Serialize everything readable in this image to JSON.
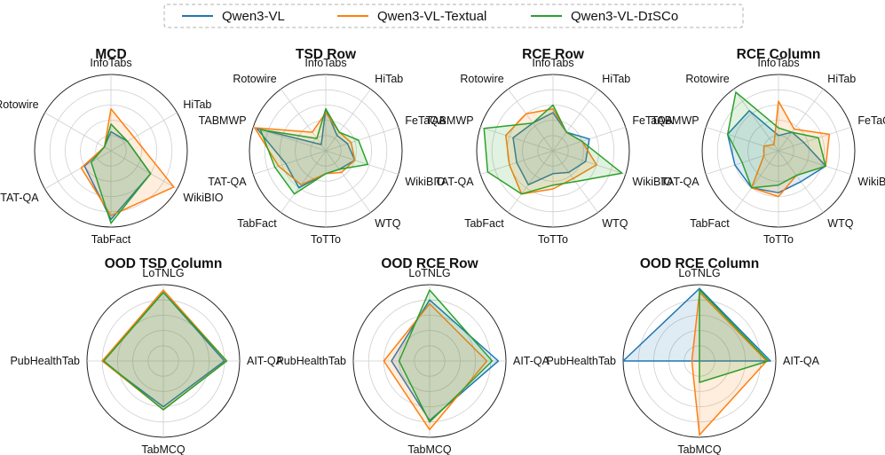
{
  "legend": [
    {
      "name": "Qwen3-VL",
      "color": "#1f77b4"
    },
    {
      "name": "Qwen3-VL-Textual",
      "color": "#ff7f0e"
    },
    {
      "name": "Qwen3-VL-DɪSCᴏ",
      "color": "#2ca02c"
    }
  ],
  "chart_data": [
    {
      "type": "radar",
      "title": "MCD",
      "axes": [
        "InfoTabs",
        "HiTab",
        "WikiBIO",
        "TabFact",
        "TAT-QA",
        "Rotowire"
      ],
      "rmax": 1.0,
      "rings": 5,
      "series": [
        {
          "name": "Qwen3-VL",
          "values": [
            0.25,
            0.25,
            0.6,
            0.9,
            0.4,
            0.1
          ]
        },
        {
          "name": "Qwen3-VL-Textual",
          "values": [
            0.55,
            0.35,
            0.95,
            0.85,
            0.45,
            0.1
          ]
        },
        {
          "name": "Qwen3-VL-DɪSCᴏ",
          "values": [
            0.35,
            0.25,
            0.6,
            0.95,
            0.3,
            0.1
          ]
        }
      ]
    },
    {
      "type": "radar",
      "title": "TSD Row",
      "axes": [
        "InfoTabs",
        "HiTab",
        "FeTaQA",
        "WikiBIO",
        "WTQ",
        "ToTTo",
        "TabFact",
        "TAT-QA",
        "TABMWP",
        "Rotowire"
      ],
      "rmax": 1.0,
      "rings": 5,
      "series": [
        {
          "name": "Qwen3-VL",
          "values": [
            0.55,
            0.25,
            0.3,
            0.4,
            0.3,
            0.3,
            0.6,
            0.55,
            0.95,
            0.1
          ]
        },
        {
          "name": "Qwen3-VL-Textual",
          "values": [
            0.5,
            0.3,
            0.35,
            0.4,
            0.35,
            0.3,
            0.55,
            0.65,
            0.98,
            0.3
          ]
        },
        {
          "name": "Qwen3-VL-DɪSCᴏ",
          "values": [
            0.55,
            0.3,
            0.45,
            0.58,
            0.3,
            0.3,
            0.7,
            0.7,
            0.9,
            0.2
          ]
        }
      ]
    },
    {
      "type": "radar",
      "title": "RCE Row",
      "axes": [
        "InfoTabs",
        "HiTab",
        "FeTaQA",
        "WikiBIO",
        "WTQ",
        "ToTTo",
        "TabFact",
        "TAT-QA",
        "TABMWP",
        "Rotowire"
      ],
      "rmax": 1.0,
      "rings": 5,
      "series": [
        {
          "name": "Qwen3-VL",
          "values": [
            0.5,
            0.3,
            0.5,
            0.45,
            0.35,
            0.3,
            0.55,
            0.5,
            0.55,
            0.45
          ]
        },
        {
          "name": "Qwen3-VL-Textual",
          "values": [
            0.55,
            0.3,
            0.4,
            0.6,
            0.45,
            0.5,
            0.7,
            0.6,
            0.65,
            0.6
          ]
        },
        {
          "name": "Qwen3-VL-DɪSCᴏ",
          "values": [
            0.6,
            0.3,
            0.4,
            0.95,
            0.5,
            0.45,
            0.7,
            0.9,
            0.95,
            0.45
          ]
        }
      ]
    },
    {
      "type": "radar",
      "title": "RCE Column",
      "axes": [
        "InfoTabs",
        "HiTab",
        "FeTaQA",
        "WikiBIO",
        "WTQ",
        "ToTTo",
        "TabFact",
        "TAT-QA",
        "TABMWP",
        "Rotowire"
      ],
      "rmax": 1.0,
      "rings": 5,
      "series": [
        {
          "name": "Qwen3-VL",
          "values": [
            0.2,
            0.3,
            0.35,
            0.65,
            0.5,
            0.55,
            0.6,
            0.6,
            0.7,
            0.65
          ]
        },
        {
          "name": "Qwen3-VL-Textual",
          "values": [
            0.65,
            0.35,
            0.7,
            0.65,
            0.4,
            0.6,
            0.6,
            0.2,
            0.2,
            0.1
          ]
        },
        {
          "name": "Qwen3-VL-DɪSCᴏ",
          "values": [
            0.3,
            0.3,
            0.55,
            0.65,
            0.4,
            0.45,
            0.6,
            0.5,
            0.7,
            0.95
          ]
        }
      ]
    },
    {
      "type": "radar",
      "title": "OOD TSD Column",
      "axes": [
        "LoTNLG",
        "AIT-QA",
        "TabMCQ",
        "PubHealthTab"
      ],
      "rmax": 1.0,
      "rings": 5,
      "series": [
        {
          "name": "Qwen3-VL",
          "values": [
            0.9,
            0.8,
            0.6,
            0.8
          ]
        },
        {
          "name": "Qwen3-VL-Textual",
          "values": [
            0.93,
            0.83,
            0.64,
            0.8
          ]
        },
        {
          "name": "Qwen3-VL-DɪSCᴏ",
          "values": [
            0.9,
            0.83,
            0.64,
            0.78
          ]
        }
      ]
    },
    {
      "type": "radar",
      "title": "OOD RCE Row",
      "axes": [
        "LoTNLG",
        "AIT-QA",
        "TabMCQ",
        "PubHealthTab"
      ],
      "rmax": 1.0,
      "rings": 5,
      "series": [
        {
          "name": "Qwen3-VL",
          "values": [
            0.8,
            0.9,
            0.78,
            0.5
          ]
        },
        {
          "name": "Qwen3-VL-Textual",
          "values": [
            0.75,
            0.75,
            0.9,
            0.6
          ]
        },
        {
          "name": "Qwen3-VL-DɪSCᴏ",
          "values": [
            0.93,
            0.82,
            0.8,
            0.4
          ]
        }
      ]
    },
    {
      "type": "radar",
      "title": "OOD RCE Column",
      "axes": [
        "LoTNLG",
        "AIT-QA",
        "TabMCQ",
        "PubHealthTab"
      ],
      "rmax": 1.0,
      "rings": 5,
      "series": [
        {
          "name": "Qwen3-VL",
          "values": [
            0.95,
            0.93,
            0.0,
            1.0
          ]
        },
        {
          "name": "Qwen3-VL-Textual",
          "values": [
            0.9,
            0.88,
            0.97,
            0.1
          ]
        },
        {
          "name": "Qwen3-VL-DɪSCᴏ",
          "values": [
            0.93,
            0.9,
            0.28,
            0.0
          ]
        }
      ]
    }
  ]
}
